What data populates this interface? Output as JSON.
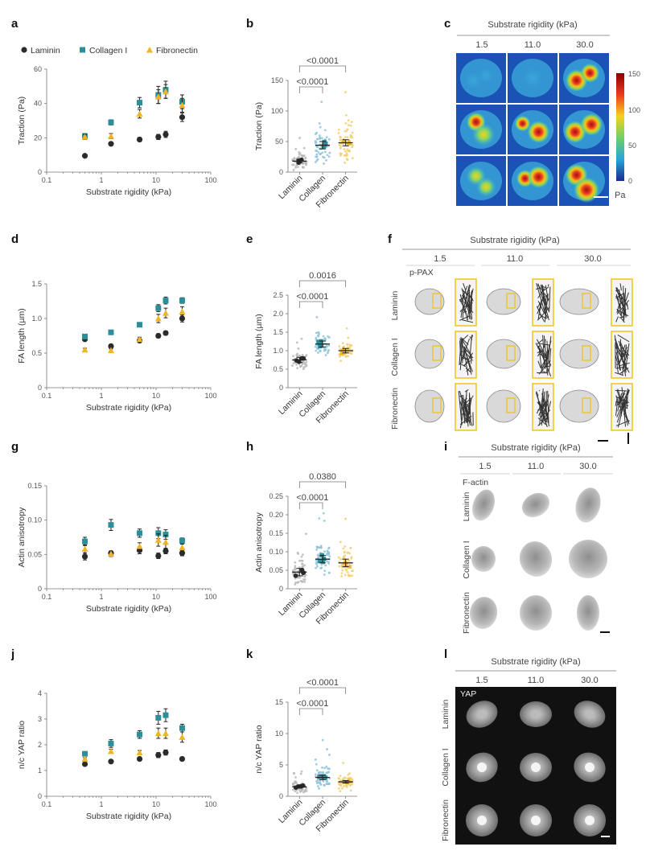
{
  "colors": {
    "laminin": "#2b2b2b",
    "collagen": "#2a8f99",
    "fibronectin": "#f0b429",
    "collagen_dot": "#8fc3d9",
    "laminin_dot": "#b8b8b8",
    "fibronectin_dot": "#f2cf72"
  },
  "panels": [
    "a",
    "b",
    "c",
    "d",
    "e",
    "f",
    "g",
    "h",
    "i",
    "j",
    "k",
    "l"
  ],
  "legend": [
    "Laminin",
    "Collagen I",
    "Fibronectin"
  ],
  "image_panels": {
    "heading": "Substrate rigidity (kPa)",
    "columns": [
      "1.5",
      "11.0",
      "30.0"
    ],
    "rows": [
      "Laminin",
      "Collagen I",
      "Fibronectin"
    ],
    "stain_f": "p-PAX",
    "stain_i": "F-actin",
    "stain_l": "YAP",
    "colorbar": {
      "ticks": [
        "150",
        "100",
        "50",
        "0"
      ],
      "unit": "Pa"
    }
  },
  "chart_data": [
    {
      "panel": "a",
      "type": "scatter",
      "xscale": "log",
      "xlim": [
        0.1,
        100
      ],
      "ylim": [
        0,
        60
      ],
      "xticks": [
        "0.1",
        "1",
        "10",
        "100"
      ],
      "yticks": [
        "0",
        "20",
        "40",
        "60"
      ],
      "xlabel": "Substrate rigidity (kPa)",
      "ylabel": "Traction (Pa)",
      "x": [
        0.5,
        1.5,
        5,
        11,
        15,
        30
      ],
      "series": [
        {
          "name": "Laminin",
          "values": [
            9.5,
            16.5,
            19,
            20.5,
            22,
            32
          ],
          "err": [
            0.6,
            1,
            1.2,
            1.5,
            1.8,
            2.5
          ]
        },
        {
          "name": "Collagen I",
          "values": [
            21,
            29,
            40.5,
            45,
            48,
            41
          ],
          "err": [
            1.5,
            1.5,
            3,
            5,
            5,
            4
          ]
        },
        {
          "name": "Fibronectin",
          "values": [
            20.5,
            21,
            34,
            44,
            47,
            39
          ],
          "err": [
            1.5,
            1.5,
            2.5,
            4,
            4,
            4
          ]
        }
      ]
    },
    {
      "panel": "b",
      "type": "dot",
      "categories": [
        "Laminin",
        "Collagen",
        "Fibronectin"
      ],
      "ylim": [
        0,
        150
      ],
      "yticks": [
        "0",
        "50",
        "100",
        "150"
      ],
      "ylabel": "Traction (Pa)",
      "means": [
        18,
        44,
        48
      ],
      "sem": [
        3,
        6,
        5
      ],
      "spread": [
        22,
        50,
        60
      ],
      "pvalues": [
        {
          "from": 0,
          "to": 1,
          "label": "<0.0001"
        },
        {
          "from": 0,
          "to": 2,
          "label": "<0.0001"
        }
      ]
    },
    {
      "panel": "d",
      "type": "scatter",
      "xscale": "log",
      "xlim": [
        0.1,
        100
      ],
      "ylim": [
        0,
        1.5
      ],
      "xticks": [
        "0.1",
        "1",
        "10",
        "100"
      ],
      "yticks": [
        "0",
        "0.5",
        "1.0",
        "1.5"
      ],
      "xlabel": "Substrate rigidity (kPa)",
      "ylabel": "FA length (µm)",
      "x": [
        0.5,
        1.5,
        5,
        11,
        15,
        30
      ],
      "series": [
        {
          "name": "Laminin",
          "values": [
            0.7,
            0.6,
            0.68,
            0.75,
            0.79,
            1.0
          ],
          "err": [
            0.02,
            0.02,
            0.02,
            0.03,
            0.03,
            0.05
          ]
        },
        {
          "name": "Collagen I",
          "values": [
            0.74,
            0.8,
            0.91,
            1.15,
            1.26,
            1.26
          ],
          "err": [
            0.02,
            0.03,
            0.03,
            0.05,
            0.05,
            0.04
          ]
        },
        {
          "name": "Fibronectin",
          "values": [
            0.55,
            0.54,
            0.7,
            1.0,
            1.08,
            1.1
          ],
          "err": [
            0.02,
            0.02,
            0.03,
            0.06,
            0.07,
            0.07
          ]
        }
      ]
    },
    {
      "panel": "e",
      "type": "dot",
      "categories": [
        "Laminin",
        "Collagen",
        "Fibronectin"
      ],
      "ylim": [
        0,
        2.5
      ],
      "yticks": [
        "0",
        "0.5",
        "1.0",
        "1.5",
        "2.0",
        "2.5"
      ],
      "ylabel": "FA length (µm)",
      "means": [
        0.75,
        1.18,
        1.0
      ],
      "sem": [
        0.07,
        0.08,
        0.06
      ],
      "spread": [
        0.35,
        0.5,
        0.35
      ],
      "pvalues": [
        {
          "from": 0,
          "to": 1,
          "label": "<0.0001"
        },
        {
          "from": 0,
          "to": 2,
          "label": "0.0016"
        }
      ]
    },
    {
      "panel": "g",
      "type": "scatter",
      "xscale": "log",
      "xlim": [
        0.1,
        100
      ],
      "ylim": [
        0,
        0.15
      ],
      "xticks": [
        "0.1",
        "1",
        "10",
        "100"
      ],
      "yticks": [
        "0",
        "0.05",
        "0.10",
        "0.15"
      ],
      "xlabel": "Substrate rigidity (kPa)",
      "ylabel": "Actin anisotropy",
      "x": [
        0.5,
        1.5,
        5,
        11,
        15,
        30
      ],
      "series": [
        {
          "name": "Laminin",
          "values": [
            0.047,
            0.052,
            0.056,
            0.048,
            0.055,
            0.052
          ],
          "err": [
            0.005,
            0.003,
            0.005,
            0.004,
            0.004,
            0.004
          ]
        },
        {
          "name": "Collagen I",
          "values": [
            0.069,
            0.093,
            0.081,
            0.081,
            0.079,
            0.07
          ],
          "err": [
            0.006,
            0.008,
            0.006,
            0.008,
            0.007,
            0.004
          ]
        },
        {
          "name": "Fibronectin",
          "values": [
            0.058,
            0.051,
            0.062,
            0.071,
            0.068,
            0.06
          ],
          "err": [
            0.006,
            0.004,
            0.005,
            0.009,
            0.01,
            0.005
          ]
        }
      ]
    },
    {
      "panel": "h",
      "type": "dot",
      "categories": [
        "Laminin",
        "Collagen",
        "Fibronectin"
      ],
      "ylim": [
        0,
        0.25
      ],
      "yticks": [
        "0",
        "0.05",
        "0.10",
        "0.15",
        "0.20",
        "0.25"
      ],
      "ylabel": "Actin anisotropy",
      "means": [
        0.045,
        0.08,
        0.07
      ],
      "sem": [
        0.01,
        0.01,
        0.01
      ],
      "spread": [
        0.06,
        0.08,
        0.07
      ],
      "pvalues": [
        {
          "from": 0,
          "to": 1,
          "label": "<0.0001"
        },
        {
          "from": 0,
          "to": 2,
          "label": "0.0380"
        }
      ]
    },
    {
      "panel": "j",
      "type": "scatter",
      "xscale": "log",
      "xlim": [
        0.1,
        100
      ],
      "ylim": [
        0,
        4
      ],
      "xticks": [
        "0.1",
        "1",
        "10",
        "100"
      ],
      "yticks": [
        "0",
        "1",
        "2",
        "3",
        "4"
      ],
      "xlabel": "Substrate rigidity (kPa)",
      "ylabel": "n/c YAP ratio",
      "x": [
        0.5,
        1.5,
        5,
        11,
        15,
        30
      ],
      "series": [
        {
          "name": "Laminin",
          "values": [
            1.25,
            1.35,
            1.45,
            1.6,
            1.7,
            1.45
          ],
          "err": [
            0.05,
            0.05,
            0.06,
            0.1,
            0.1,
            0.06
          ]
        },
        {
          "name": "Collagen I",
          "values": [
            1.65,
            2.05,
            2.4,
            3.05,
            3.15,
            2.65
          ],
          "err": [
            0.08,
            0.15,
            0.15,
            0.25,
            0.25,
            0.15
          ]
        },
        {
          "name": "Fibronectin",
          "values": [
            1.45,
            1.75,
            1.7,
            2.45,
            2.45,
            2.3
          ],
          "err": [
            0.05,
            0.08,
            0.08,
            0.2,
            0.2,
            0.2
          ]
        }
      ]
    },
    {
      "panel": "k",
      "type": "dot",
      "categories": [
        "Laminin",
        "Collagen",
        "Fibronectin"
      ],
      "ylim": [
        0,
        15
      ],
      "yticks": [
        "0",
        "5",
        "10",
        "15"
      ],
      "ylabel": "n/c YAP ratio",
      "means": [
        1.5,
        3.0,
        2.3
      ],
      "sem": [
        0.2,
        0.35,
        0.2
      ],
      "spread": [
        1.5,
        3.5,
        2.2
      ],
      "pvalues": [
        {
          "from": 0,
          "to": 1,
          "label": "<0.0001"
        },
        {
          "from": 0,
          "to": 2,
          "label": "<0.0001"
        }
      ]
    }
  ]
}
